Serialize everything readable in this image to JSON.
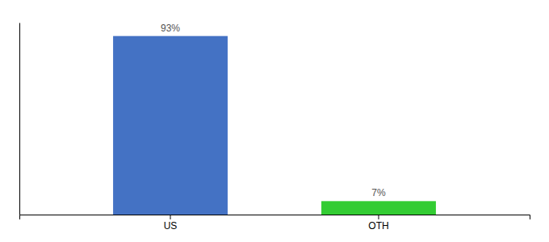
{
  "chart_data": {
    "type": "bar",
    "categories": [
      "US",
      "OTH"
    ],
    "values": [
      93,
      7
    ],
    "value_labels": [
      "93%",
      "7%"
    ],
    "colors": [
      "#4472c4",
      "#33cc33"
    ],
    "ylim": [
      0,
      100
    ],
    "data_labels": true,
    "tick_labels": "x",
    "grid": false
  }
}
